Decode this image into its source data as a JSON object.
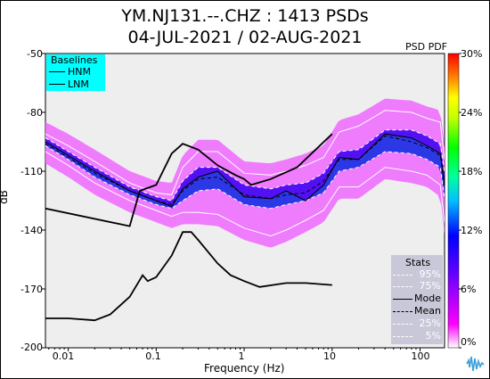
{
  "title_line1": "YM.NJ131.--.CHZ : 1413 PSDs",
  "title_line2": "04-JUL-2021 / 02-AUG-2021",
  "pdf_label": "PSD PDF",
  "baselines": {
    "title": "Baselines",
    "hnm": "HNM",
    "lnm": "LNM"
  },
  "stats": {
    "title": "Stats",
    "p95": "95%",
    "p75": "75%",
    "mode": "Mode",
    "mean": "Mean",
    "p25": "25%",
    "p5": "5%"
  },
  "colorbar_ticks": [
    "30%",
    "24%",
    "18%",
    "12%",
    "6%",
    "0%"
  ],
  "y_ticks": [
    "-50",
    "-80",
    "-110",
    "-140",
    "-170",
    "-200"
  ],
  "x_ticks": [
    "0.01",
    "0.1",
    "1",
    "10",
    "100"
  ],
  "chart_data": {
    "type": "heatmap",
    "title": "YM.NJ131.--.CHZ : 1413 PSDs 04-JUL-2021 / 02-AUG-2021",
    "xlabel": "Frequency (Hz)",
    "ylabel": "dB",
    "xscale": "log",
    "xlim": [
      0.0055,
      190
    ],
    "ylim": [
      -200,
      -50
    ],
    "colorbar": {
      "label": "PSD PDF",
      "range_percent": [
        0,
        30
      ]
    },
    "legend": [
      "Baselines: HNM, LNM",
      "Stats: 95%, 75%, Mode, Mean, 25%, 5%"
    ],
    "series": [
      {
        "name": "HNM",
        "x": [
          0.0055,
          0.05,
          0.065,
          0.1,
          0.15,
          0.2,
          0.3,
          0.5,
          0.8,
          1.0,
          1.2,
          2,
          4,
          10
        ],
        "y": [
          -129,
          -138,
          -120,
          -117,
          -101,
          -96,
          -99,
          -107,
          -112,
          -114,
          -117,
          -114,
          -108,
          -91
        ]
      },
      {
        "name": "LNM",
        "x": [
          0.0055,
          0.01,
          0.02,
          0.03,
          0.05,
          0.07,
          0.08,
          0.1,
          0.15,
          0.2,
          0.25,
          0.3,
          0.5,
          0.7,
          1.0,
          1.5,
          3,
          5,
          10
        ],
        "y": [
          -185,
          -185,
          -186,
          -183,
          -174,
          -163,
          -166,
          -164,
          -153,
          -141,
          -141,
          -145,
          -157,
          -163,
          -166,
          -169,
          -167,
          -167,
          -168
        ]
      },
      {
        "name": "Mode",
        "x": [
          0.0055,
          0.01,
          0.02,
          0.05,
          0.1,
          0.15,
          0.2,
          0.3,
          0.5,
          1,
          2,
          3,
          5,
          8,
          12,
          20,
          40,
          80,
          120,
          170,
          190
        ],
        "y": [
          -95,
          -102,
          -110,
          -120,
          -125,
          -128,
          -119,
          -113,
          -110,
          -123,
          -124,
          -120,
          -125,
          -117,
          -103,
          -104,
          -91,
          -93,
          -97,
          -101,
          -116
        ]
      },
      {
        "name": "Mean",
        "x": [
          0.0055,
          0.01,
          0.02,
          0.05,
          0.1,
          0.15,
          0.2,
          0.3,
          0.5,
          1,
          2,
          3,
          5,
          8,
          12,
          20,
          40,
          80,
          120,
          170,
          190
        ],
        "y": [
          -96,
          -103,
          -111,
          -120,
          -125,
          -127,
          -120,
          -114,
          -113,
          -122,
          -124,
          -122,
          -121,
          -115,
          -104,
          -104,
          -92,
          -95,
          -98,
          -102,
          -118
        ]
      },
      {
        "name": "95%",
        "x": [
          0.0055,
          0.01,
          0.02,
          0.05,
          0.1,
          0.15,
          0.2,
          0.3,
          0.5,
          1,
          2,
          3,
          5,
          8,
          12,
          20,
          40,
          80,
          120,
          170,
          190
        ],
        "y": [
          -91,
          -97,
          -105,
          -116,
          -121,
          -122,
          -108,
          -100,
          -100,
          -111,
          -112,
          -110,
          -107,
          -103,
          -90,
          -87,
          -79,
          -80,
          -83,
          -85,
          -104
        ]
      },
      {
        "name": "75%",
        "x": [
          0.0055,
          0.01,
          0.02,
          0.05,
          0.1,
          0.15,
          0.2,
          0.3,
          0.5,
          1,
          2,
          3,
          5,
          8,
          12,
          20,
          40,
          80,
          120,
          170,
          190
        ],
        "y": [
          -93,
          -100,
          -108,
          -118,
          -123,
          -125,
          -115,
          -108,
          -108,
          -117,
          -119,
          -117,
          -116,
          -111,
          -100,
          -99,
          -89,
          -89,
          -92,
          -96,
          -111
        ]
      },
      {
        "name": "25%",
        "x": [
          0.0055,
          0.01,
          0.02,
          0.05,
          0.1,
          0.15,
          0.2,
          0.3,
          0.5,
          1,
          2,
          3,
          5,
          8,
          12,
          20,
          40,
          80,
          120,
          170,
          190
        ],
        "y": [
          -97,
          -104,
          -113,
          -122,
          -127,
          -129,
          -125,
          -120,
          -119,
          -127,
          -129,
          -127,
          -125,
          -121,
          -110,
          -108,
          -100,
          -101,
          -104,
          -108,
          -124
        ]
      },
      {
        "name": "5%",
        "x": [
          0.0055,
          0.01,
          0.02,
          0.05,
          0.1,
          0.15,
          0.2,
          0.3,
          0.5,
          1,
          2,
          3,
          5,
          8,
          12,
          20,
          40,
          80,
          120,
          170,
          190
        ],
        "y": [
          -100,
          -107,
          -116,
          -125,
          -130,
          -133,
          -131,
          -131,
          -132,
          -139,
          -143,
          -140,
          -135,
          -130,
          -118,
          -118,
          -108,
          -110,
          -112,
          -117,
          -136
        ]
      }
    ]
  }
}
